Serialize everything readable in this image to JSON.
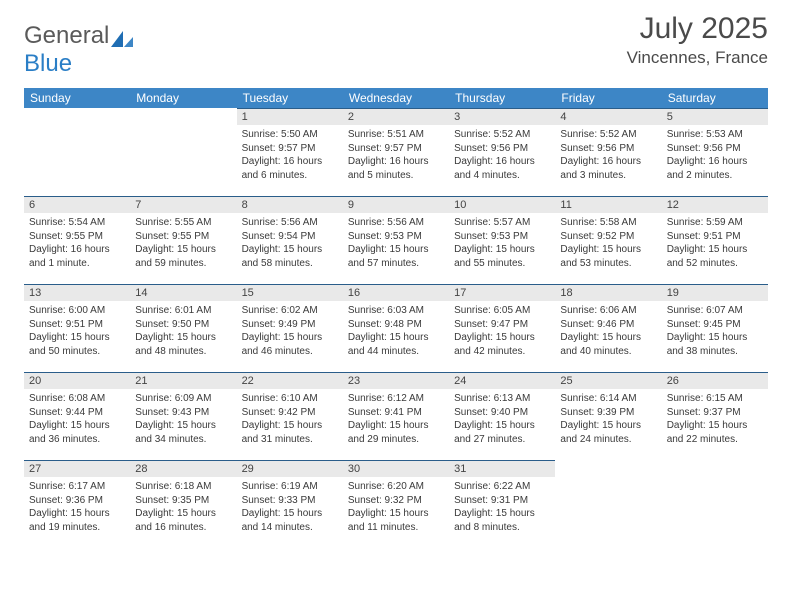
{
  "brand": {
    "part1": "General",
    "part2": "Blue"
  },
  "title": "July 2025",
  "location": "Vincennes, France",
  "colors": {
    "header_bg": "#3d86c6",
    "header_text": "#ffffff",
    "daynum_bg": "#e9e9e9",
    "daynum_border": "#2a5d8a",
    "body_text": "#3a3a3a",
    "title_text": "#4a4a4a",
    "logo_gray": "#5a5a5a",
    "logo_blue": "#2a7ec6"
  },
  "headers": [
    "Sunday",
    "Monday",
    "Tuesday",
    "Wednesday",
    "Thursday",
    "Friday",
    "Saturday"
  ],
  "weeks": [
    [
      {
        "empty": true
      },
      {
        "empty": true
      },
      {
        "num": "1",
        "sunrise": "Sunrise: 5:50 AM",
        "sunset": "Sunset: 9:57 PM",
        "daylight1": "Daylight: 16 hours",
        "daylight2": "and 6 minutes."
      },
      {
        "num": "2",
        "sunrise": "Sunrise: 5:51 AM",
        "sunset": "Sunset: 9:57 PM",
        "daylight1": "Daylight: 16 hours",
        "daylight2": "and 5 minutes."
      },
      {
        "num": "3",
        "sunrise": "Sunrise: 5:52 AM",
        "sunset": "Sunset: 9:56 PM",
        "daylight1": "Daylight: 16 hours",
        "daylight2": "and 4 minutes."
      },
      {
        "num": "4",
        "sunrise": "Sunrise: 5:52 AM",
        "sunset": "Sunset: 9:56 PM",
        "daylight1": "Daylight: 16 hours",
        "daylight2": "and 3 minutes."
      },
      {
        "num": "5",
        "sunrise": "Sunrise: 5:53 AM",
        "sunset": "Sunset: 9:56 PM",
        "daylight1": "Daylight: 16 hours",
        "daylight2": "and 2 minutes."
      }
    ],
    [
      {
        "num": "6",
        "sunrise": "Sunrise: 5:54 AM",
        "sunset": "Sunset: 9:55 PM",
        "daylight1": "Daylight: 16 hours",
        "daylight2": "and 1 minute."
      },
      {
        "num": "7",
        "sunrise": "Sunrise: 5:55 AM",
        "sunset": "Sunset: 9:55 PM",
        "daylight1": "Daylight: 15 hours",
        "daylight2": "and 59 minutes."
      },
      {
        "num": "8",
        "sunrise": "Sunrise: 5:56 AM",
        "sunset": "Sunset: 9:54 PM",
        "daylight1": "Daylight: 15 hours",
        "daylight2": "and 58 minutes."
      },
      {
        "num": "9",
        "sunrise": "Sunrise: 5:56 AM",
        "sunset": "Sunset: 9:53 PM",
        "daylight1": "Daylight: 15 hours",
        "daylight2": "and 57 minutes."
      },
      {
        "num": "10",
        "sunrise": "Sunrise: 5:57 AM",
        "sunset": "Sunset: 9:53 PM",
        "daylight1": "Daylight: 15 hours",
        "daylight2": "and 55 minutes."
      },
      {
        "num": "11",
        "sunrise": "Sunrise: 5:58 AM",
        "sunset": "Sunset: 9:52 PM",
        "daylight1": "Daylight: 15 hours",
        "daylight2": "and 53 minutes."
      },
      {
        "num": "12",
        "sunrise": "Sunrise: 5:59 AM",
        "sunset": "Sunset: 9:51 PM",
        "daylight1": "Daylight: 15 hours",
        "daylight2": "and 52 minutes."
      }
    ],
    [
      {
        "num": "13",
        "sunrise": "Sunrise: 6:00 AM",
        "sunset": "Sunset: 9:51 PM",
        "daylight1": "Daylight: 15 hours",
        "daylight2": "and 50 minutes."
      },
      {
        "num": "14",
        "sunrise": "Sunrise: 6:01 AM",
        "sunset": "Sunset: 9:50 PM",
        "daylight1": "Daylight: 15 hours",
        "daylight2": "and 48 minutes."
      },
      {
        "num": "15",
        "sunrise": "Sunrise: 6:02 AM",
        "sunset": "Sunset: 9:49 PM",
        "daylight1": "Daylight: 15 hours",
        "daylight2": "and 46 minutes."
      },
      {
        "num": "16",
        "sunrise": "Sunrise: 6:03 AM",
        "sunset": "Sunset: 9:48 PM",
        "daylight1": "Daylight: 15 hours",
        "daylight2": "and 44 minutes."
      },
      {
        "num": "17",
        "sunrise": "Sunrise: 6:05 AM",
        "sunset": "Sunset: 9:47 PM",
        "daylight1": "Daylight: 15 hours",
        "daylight2": "and 42 minutes."
      },
      {
        "num": "18",
        "sunrise": "Sunrise: 6:06 AM",
        "sunset": "Sunset: 9:46 PM",
        "daylight1": "Daylight: 15 hours",
        "daylight2": "and 40 minutes."
      },
      {
        "num": "19",
        "sunrise": "Sunrise: 6:07 AM",
        "sunset": "Sunset: 9:45 PM",
        "daylight1": "Daylight: 15 hours",
        "daylight2": "and 38 minutes."
      }
    ],
    [
      {
        "num": "20",
        "sunrise": "Sunrise: 6:08 AM",
        "sunset": "Sunset: 9:44 PM",
        "daylight1": "Daylight: 15 hours",
        "daylight2": "and 36 minutes."
      },
      {
        "num": "21",
        "sunrise": "Sunrise: 6:09 AM",
        "sunset": "Sunset: 9:43 PM",
        "daylight1": "Daylight: 15 hours",
        "daylight2": "and 34 minutes."
      },
      {
        "num": "22",
        "sunrise": "Sunrise: 6:10 AM",
        "sunset": "Sunset: 9:42 PM",
        "daylight1": "Daylight: 15 hours",
        "daylight2": "and 31 minutes."
      },
      {
        "num": "23",
        "sunrise": "Sunrise: 6:12 AM",
        "sunset": "Sunset: 9:41 PM",
        "daylight1": "Daylight: 15 hours",
        "daylight2": "and 29 minutes."
      },
      {
        "num": "24",
        "sunrise": "Sunrise: 6:13 AM",
        "sunset": "Sunset: 9:40 PM",
        "daylight1": "Daylight: 15 hours",
        "daylight2": "and 27 minutes."
      },
      {
        "num": "25",
        "sunrise": "Sunrise: 6:14 AM",
        "sunset": "Sunset: 9:39 PM",
        "daylight1": "Daylight: 15 hours",
        "daylight2": "and 24 minutes."
      },
      {
        "num": "26",
        "sunrise": "Sunrise: 6:15 AM",
        "sunset": "Sunset: 9:37 PM",
        "daylight1": "Daylight: 15 hours",
        "daylight2": "and 22 minutes."
      }
    ],
    [
      {
        "num": "27",
        "sunrise": "Sunrise: 6:17 AM",
        "sunset": "Sunset: 9:36 PM",
        "daylight1": "Daylight: 15 hours",
        "daylight2": "and 19 minutes."
      },
      {
        "num": "28",
        "sunrise": "Sunrise: 6:18 AM",
        "sunset": "Sunset: 9:35 PM",
        "daylight1": "Daylight: 15 hours",
        "daylight2": "and 16 minutes."
      },
      {
        "num": "29",
        "sunrise": "Sunrise: 6:19 AM",
        "sunset": "Sunset: 9:33 PM",
        "daylight1": "Daylight: 15 hours",
        "daylight2": "and 14 minutes."
      },
      {
        "num": "30",
        "sunrise": "Sunrise: 6:20 AM",
        "sunset": "Sunset: 9:32 PM",
        "daylight1": "Daylight: 15 hours",
        "daylight2": "and 11 minutes."
      },
      {
        "num": "31",
        "sunrise": "Sunrise: 6:22 AM",
        "sunset": "Sunset: 9:31 PM",
        "daylight1": "Daylight: 15 hours",
        "daylight2": "and 8 minutes."
      },
      {
        "empty": true
      },
      {
        "empty": true
      }
    ]
  ]
}
